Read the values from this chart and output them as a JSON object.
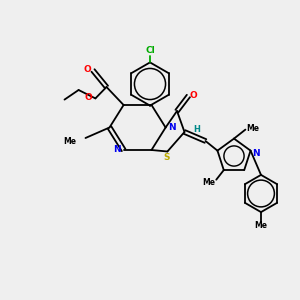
{
  "background_color": "#efefef",
  "figsize": [
    3.0,
    3.0
  ],
  "dpi": 100,
  "atoms": {
    "Cl": {
      "color": "#00aa00"
    },
    "O": {
      "color": "#ff0000"
    },
    "N": {
      "color": "#0000ee"
    },
    "S": {
      "color": "#bbaa00"
    },
    "H": {
      "color": "#008888"
    }
  },
  "lw": 1.3,
  "xlim": [
    0,
    10
  ],
  "ylim": [
    0,
    10
  ]
}
